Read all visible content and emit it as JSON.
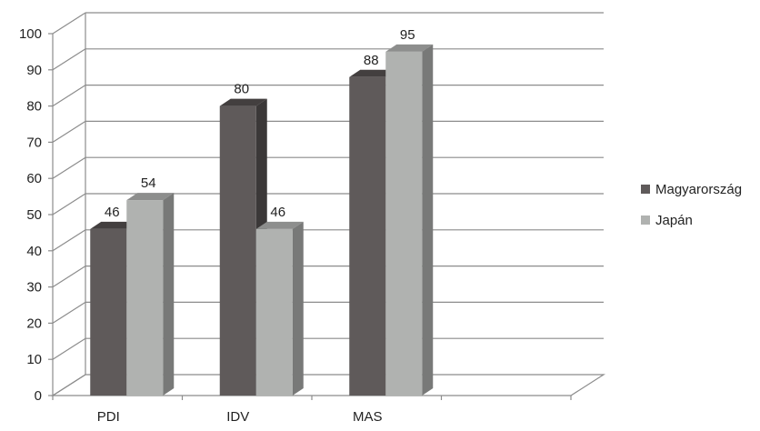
{
  "chart_data": {
    "type": "bar",
    "style": "3d-clustered-column",
    "categories": [
      "PDI",
      "IDV",
      "MAS"
    ],
    "series": [
      {
        "name": "Magyarország",
        "values": [
          46,
          80,
          88
        ],
        "color": "#5f5a5a"
      },
      {
        "name": "Japán",
        "values": [
          54,
          46,
          95
        ],
        "color": "#b0b2b0"
      }
    ],
    "ylim": [
      0,
      100
    ],
    "yticks": [
      0,
      10,
      20,
      30,
      40,
      50,
      60,
      70,
      80,
      90,
      100
    ],
    "grid": true,
    "legend_position": "right",
    "title": "",
    "xlabel": "",
    "ylabel": ""
  }
}
